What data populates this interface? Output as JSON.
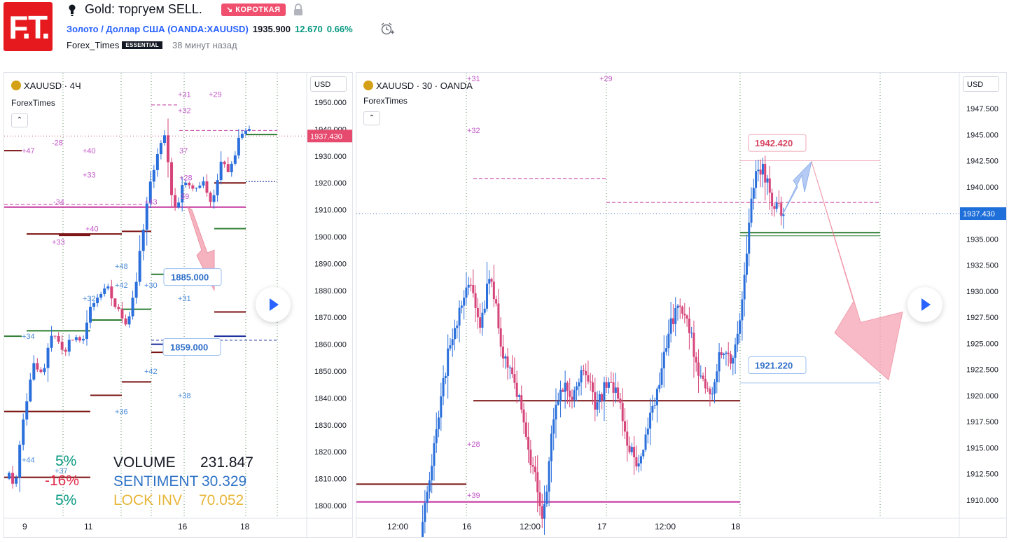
{
  "header": {
    "logo_text": "F.T.",
    "title": "Gold: торгуем SELL.",
    "short_badge": "↘ КОРОТКАЯ",
    "symbol_link": "Золото / Доллар США (OANDA:XAUUSD)",
    "price": "1935.900",
    "change": "12.670",
    "change_pct": "0.66%",
    "author": "Forex_Times",
    "author_badge": "ESSENTIAL",
    "time_ago": "38 минут назад"
  },
  "left_chart": {
    "title": "XAUUSD · 4Ч",
    "indicator": "ForexTimes",
    "collapse_label": "⌃",
    "currency": "USD",
    "current_price": "1937.430",
    "y_ticks": [
      "1950.000",
      "1940.000",
      "1930.000",
      "1920.000",
      "1910.000",
      "1900.000",
      "1890.000",
      "1880.000",
      "1870.000",
      "1860.000",
      "1850.000",
      "1840.000",
      "1830.000",
      "1820.000",
      "1810.000",
      "1800.000"
    ],
    "x_ticks": [
      "9",
      "11",
      "16",
      "18"
    ],
    "callouts": [
      "1885.000",
      "1859.000"
    ],
    "markers_pink": [
      "+47",
      "-28",
      "+40",
      "+33",
      "-34",
      "+43",
      "+33",
      "+40",
      "+31",
      "+32",
      "+29",
      "37",
      "+28",
      "39"
    ],
    "markers_blue": [
      "+34",
      "+48",
      "+42",
      "+32",
      "+30",
      "+31",
      "+42",
      "+36",
      "+38",
      "+44",
      "+37"
    ],
    "stats": {
      "pct_1": "5%",
      "pct_2": "-16%",
      "pct_3": "5%",
      "volume_label": "VOLUME",
      "volume_value": "231.847",
      "sentiment_label": "SENTIMENT",
      "sentiment_value": "30.329",
      "lock_label": "LOCK INV",
      "lock_value": "70.052"
    }
  },
  "right_chart": {
    "title": "XAUUSD · 30 · OANDA",
    "indicator": "ForexTimes",
    "collapse_label": "⌃",
    "currency": "USD",
    "current_price": "1937.430",
    "y_ticks": [
      "1947.500",
      "1945.000",
      "1942.500",
      "1940.000",
      "1937.500",
      "1935.000",
      "1932.500",
      "1930.000",
      "1927.500",
      "1925.000",
      "1922.500",
      "1920.000",
      "1917.500",
      "1915.000",
      "1912.500",
      "1910.000"
    ],
    "x_ticks": [
      "12:00",
      "16",
      "12:00",
      "17",
      "12:00",
      "18"
    ],
    "callouts": [
      "1942.420",
      "1921.220"
    ],
    "markers": [
      "+31",
      "+29",
      "+32",
      "+28",
      "+39"
    ]
  },
  "colors": {
    "up": "#2a6fdb",
    "down": "#d6457a",
    "brand_red": "#e6191f",
    "price_tag_left": "#e64a6e",
    "price_tag_right": "#1e6fd9",
    "pink_markers": "#c257c8",
    "blue_markers": "#4a8ad8"
  },
  "icons": [
    "lightbulb-icon",
    "lock-icon",
    "alarm-clock-icon",
    "gold-coin-icon",
    "play-icon",
    "chevron-up-icon"
  ]
}
